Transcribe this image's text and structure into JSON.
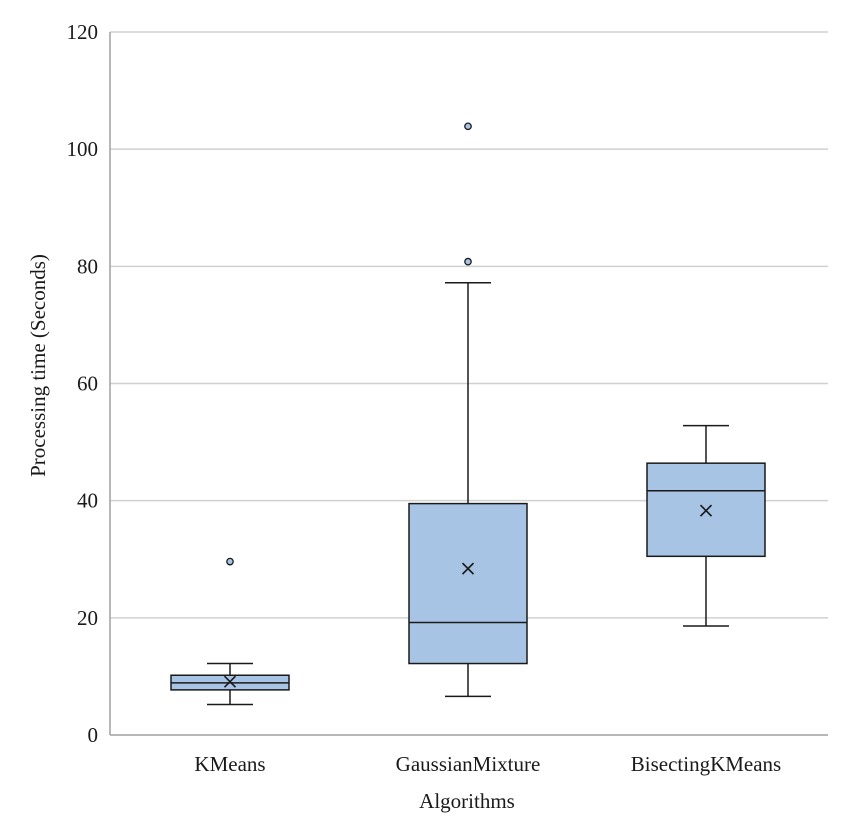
{
  "chart_data": {
    "type": "box",
    "title": "",
    "xlabel": "Algorithms",
    "ylabel": "Processing time (Seconds)",
    "ylim": [
      0,
      120
    ],
    "yticks": [
      0,
      20,
      40,
      60,
      80,
      100,
      120
    ],
    "grid": true,
    "categories": [
      "KMeans",
      "GaussianMixture",
      "BisectingKMeans"
    ],
    "boxes": [
      {
        "name": "KMeans",
        "whisker_low": 5.2,
        "q1": 7.7,
        "median": 8.9,
        "q3": 10.2,
        "whisker_high": 12.2,
        "mean": 9.1,
        "outliers": [
          29.6
        ]
      },
      {
        "name": "GaussianMixture",
        "whisker_low": 6.6,
        "q1": 12.2,
        "median": 19.2,
        "q3": 39.5,
        "whisker_high": 77.2,
        "mean": 28.4,
        "outliers": [
          80.8,
          103.9
        ]
      },
      {
        "name": "BisectingKMeans",
        "whisker_low": 18.6,
        "q1": 30.5,
        "median": 41.7,
        "q3": 46.4,
        "whisker_high": 52.8,
        "mean": 38.3,
        "outliers": []
      }
    ],
    "colors": {
      "box_fill": "#a7c4e5",
      "stroke": "#1a1a1a",
      "grid": "#d0d0d0",
      "axis": "#a0a0a0"
    }
  }
}
